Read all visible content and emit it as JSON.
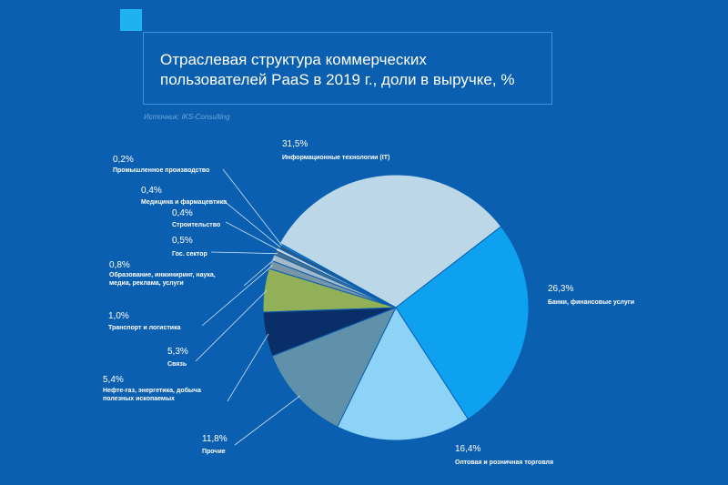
{
  "header": {
    "title_line1": "Отраслевая структура коммерческих",
    "title_line2": "пользователей PaaS в 2019 г., доли в выручке, %",
    "source": "Источник: iKS-Consulting"
  },
  "chart_data": {
    "type": "pie",
    "title": "Отраслевая структура коммерческих пользователей PaaS в 2019 г., доли в выручке, %",
    "slices": [
      {
        "label": "Информационные технологии (IT)",
        "value": 31.5,
        "value_label": "31,5%",
        "color": "#bcd8e8"
      },
      {
        "label": "Банки, финансовые услуги",
        "value": 26.3,
        "value_label": "26,3%",
        "color": "#0ea1ef"
      },
      {
        "label": "Оптовая и розничная торговля",
        "value": 16.4,
        "value_label": "16,4%",
        "color": "#8dd3f8"
      },
      {
        "label": "Прочие",
        "value": 11.8,
        "value_label": "11,8%",
        "color": "#5f91ab"
      },
      {
        "label": "Нефте-газ, энергетика, добыча полезных ископаемых",
        "value": 5.4,
        "value_label": "5,4%",
        "color": "#0a2f68"
      },
      {
        "label": "Связь",
        "value": 5.3,
        "value_label": "5,3%",
        "color": "#92b057"
      },
      {
        "label": "Транспорт и логистика",
        "value": 1.0,
        "value_label": "1,0%",
        "color": "#7896a6"
      },
      {
        "label": "Образование, инжиниринг, наука, медиа, реклама, услуги",
        "value": 0.8,
        "value_label": "0,8%",
        "color": "#a5bac9"
      },
      {
        "label": "Гос. сектор",
        "value": 0.5,
        "value_label": "0,5%",
        "color": "#4a6f8a"
      },
      {
        "label": "Строительство",
        "value": 0.4,
        "value_label": "0,4%",
        "color": "#c5d4de"
      },
      {
        "label": "Медицина и фармацевтика",
        "value": 0.4,
        "value_label": "0,4%",
        "color": "#2d5a80"
      },
      {
        "label": "Промышленное производство",
        "value": 0.2,
        "value_label": "0,2%",
        "color": "#1aa8f0"
      }
    ]
  }
}
